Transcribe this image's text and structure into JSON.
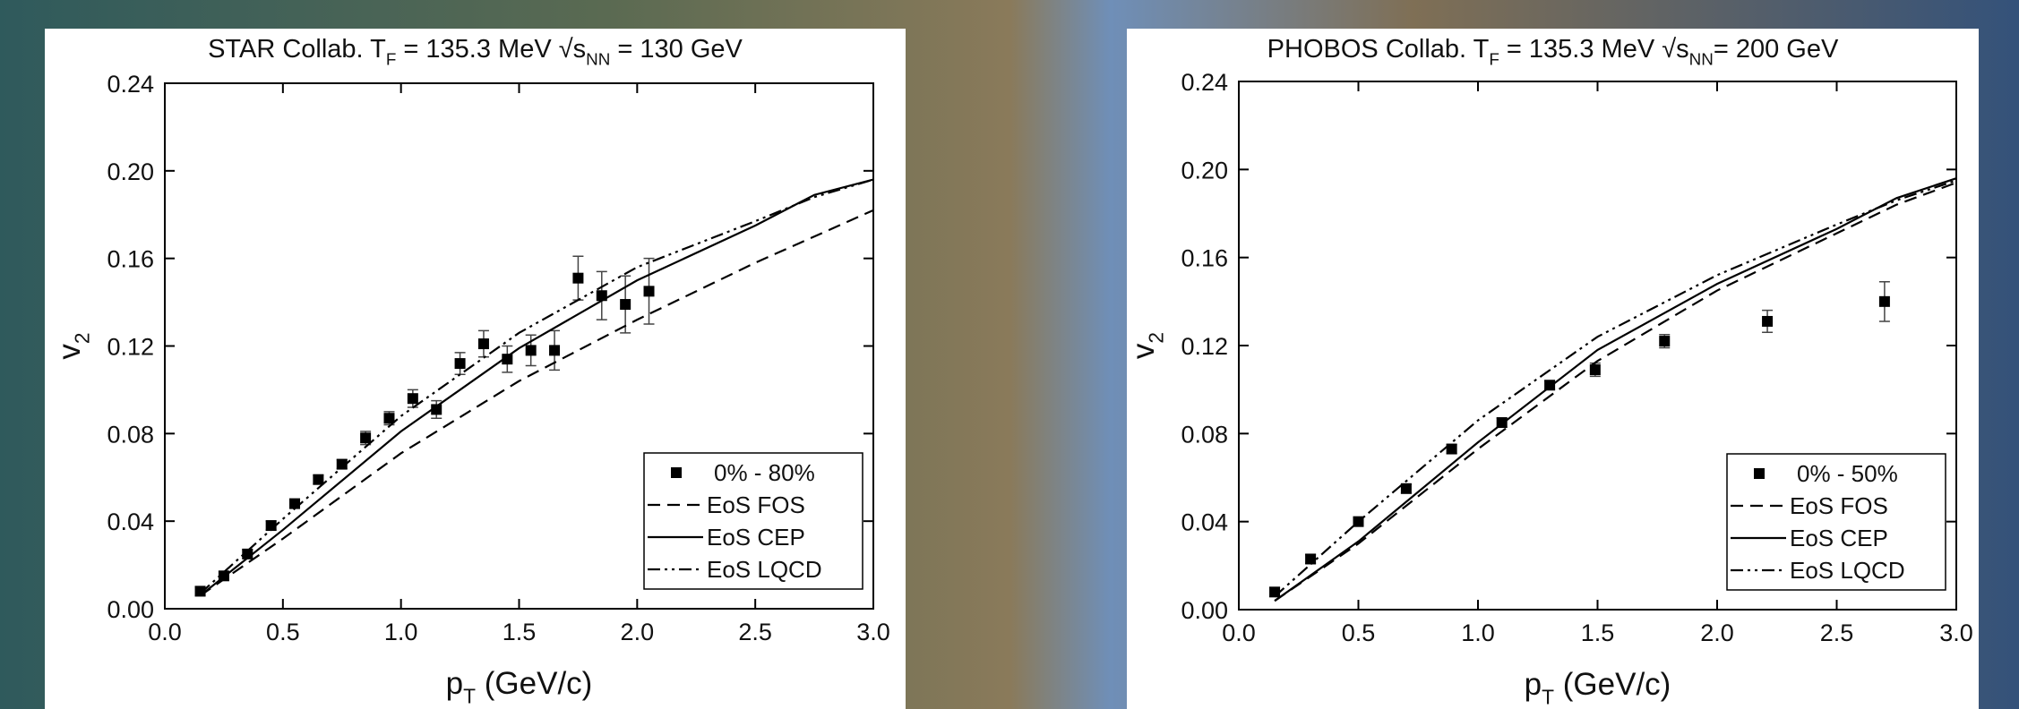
{
  "chart_data": [
    {
      "type": "line",
      "title": [
        {
          "text": "STAR Collab.   T"
        },
        {
          "text": "F",
          "sub": true
        },
        {
          "text": " = 135.3 MeV   √s"
        },
        {
          "text": "NN",
          "sub": true
        },
        {
          "text": " = 130 GeV"
        }
      ],
      "x_label": [
        {
          "text": "p"
        },
        {
          "text": "T",
          "sub": true
        },
        {
          "text": " (GeV/c)"
        }
      ],
      "y_label": [
        {
          "text": "v"
        },
        {
          "text": "2",
          "sub": true
        }
      ],
      "xlim": [
        0,
        3
      ],
      "ylim": [
        0,
        0.24
      ],
      "xticks": [
        {
          "value": 0,
          "label": "0.0"
        },
        0.5,
        {
          "value": 1,
          "label": "1.0"
        },
        1.5,
        {
          "value": 2,
          "label": "2.0"
        },
        2.5,
        {
          "value": 3,
          "label": "3.0"
        }
      ],
      "yticks": [
        {
          "value": 0,
          "label": "0.00"
        },
        {
          "value": 0.04,
          "label": "0.04"
        },
        {
          "value": 0.08,
          "label": "0.08"
        },
        {
          "value": 0.12,
          "label": "0.12"
        },
        {
          "value": 0.16,
          "label": "0.16"
        },
        {
          "value": 0.2,
          "label": "0.20"
        },
        {
          "value": 0.24,
          "label": "0.24"
        }
      ],
      "legend": "lower right",
      "series": [
        {
          "name": "0% - 80%",
          "style": "points",
          "color": "#000000",
          "x": [
            0.15,
            0.25,
            0.35,
            0.45,
            0.55,
            0.65,
            0.75,
            0.85,
            0.95,
            1.05,
            1.15,
            1.25,
            1.35,
            1.45,
            1.55,
            1.65,
            1.75,
            1.85,
            1.95,
            2.05
          ],
          "values": [
            0.008,
            0.015,
            0.025,
            0.038,
            0.048,
            0.059,
            0.066,
            0.078,
            0.087,
            0.096,
            0.091,
            0.112,
            0.121,
            0.114,
            0.118,
            0.118,
            0.151,
            0.143,
            0.139,
            0.145
          ],
          "errors": [
            0.002,
            0.002,
            0.002,
            0.002,
            0.002,
            0.002,
            0.002,
            0.003,
            0.003,
            0.004,
            0.004,
            0.005,
            0.006,
            0.006,
            0.007,
            0.009,
            0.01,
            0.011,
            0.013,
            0.015
          ]
        },
        {
          "name": "EoS FOS",
          "style": "dashed",
          "color": "#000000",
          "x": [
            0.15,
            0.5,
            1.0,
            1.5,
            2.0,
            2.5,
            3.0
          ],
          "values": [
            0.006,
            0.032,
            0.071,
            0.104,
            0.132,
            0.158,
            0.182
          ]
        },
        {
          "name": "EoS CEP",
          "style": "solid",
          "color": "#000000",
          "x": [
            0.15,
            0.5,
            1.0,
            1.5,
            2.0,
            2.5,
            2.75,
            3.0
          ],
          "values": [
            0.006,
            0.036,
            0.081,
            0.119,
            0.15,
            0.175,
            0.189,
            0.196
          ]
        },
        {
          "name": "EoS LQCD",
          "style": "dash-dot-dot",
          "color": "#000000",
          "x": [
            0.15,
            0.5,
            1.0,
            1.5,
            2.0,
            2.5,
            2.75,
            3.0
          ],
          "values": [
            0.007,
            0.041,
            0.088,
            0.126,
            0.156,
            0.177,
            0.188,
            0.196
          ]
        }
      ]
    },
    {
      "type": "line",
      "title": [
        {
          "text": "PHOBOS Collab.    T"
        },
        {
          "text": "F",
          "sub": true
        },
        {
          "text": " = 135.3 MeV   √s"
        },
        {
          "text": "NN",
          "sub": true
        },
        {
          "text": "= 200 GeV"
        }
      ],
      "x_label": [
        {
          "text": "p"
        },
        {
          "text": "T",
          "sub": true
        },
        {
          "text": " (GeV/c)"
        }
      ],
      "y_label": [
        {
          "text": "v"
        },
        {
          "text": "2",
          "sub": true
        }
      ],
      "xlim": [
        0,
        3
      ],
      "ylim": [
        0,
        0.24
      ],
      "xticks": [
        {
          "value": 0,
          "label": "0.0"
        },
        0.5,
        {
          "value": 1,
          "label": "1.0"
        },
        1.5,
        {
          "value": 2,
          "label": "2.0"
        },
        2.5,
        {
          "value": 3,
          "label": "3.0"
        }
      ],
      "yticks": [
        {
          "value": 0,
          "label": "0.00"
        },
        {
          "value": 0.04,
          "label": "0.04"
        },
        {
          "value": 0.08,
          "label": "0.08"
        },
        {
          "value": 0.12,
          "label": "0.12"
        },
        {
          "value": 0.16,
          "label": "0.16"
        },
        {
          "value": 0.2,
          "label": "0.20"
        },
        {
          "value": 0.24,
          "label": "0.24"
        }
      ],
      "legend": "lower right",
      "series": [
        {
          "name": "0% - 50%",
          "style": "points",
          "color": "#000000",
          "x": [
            0.15,
            0.3,
            0.5,
            0.7,
            0.89,
            1.1,
            1.3,
            1.49,
            1.78,
            2.21,
            2.7
          ],
          "values": [
            0.008,
            0.023,
            0.04,
            0.055,
            0.073,
            0.085,
            0.102,
            0.109,
            0.122,
            0.131,
            0.14
          ],
          "errors": [
            0.002,
            0.002,
            0.002,
            0.002,
            0.002,
            0.002,
            0.002,
            0.003,
            0.003,
            0.005,
            0.009
          ]
        },
        {
          "name": "EoS FOS",
          "style": "dashed",
          "color": "#000000",
          "x": [
            0.15,
            0.5,
            1.0,
            1.5,
            2.0,
            2.5,
            2.75,
            3.0
          ],
          "values": [
            0.004,
            0.03,
            0.073,
            0.113,
            0.145,
            0.171,
            0.184,
            0.194
          ]
        },
        {
          "name": "EoS CEP",
          "style": "solid",
          "color": "#000000",
          "x": [
            0.15,
            0.5,
            1.0,
            1.5,
            2.0,
            2.5,
            2.75,
            3.0
          ],
          "values": [
            0.004,
            0.031,
            0.076,
            0.118,
            0.148,
            0.173,
            0.187,
            0.196
          ]
        },
        {
          "name": "EoS LQCD",
          "style": "dash-dot-dot",
          "color": "#000000",
          "x": [
            0.15,
            0.5,
            1.0,
            1.5,
            2.0,
            2.5,
            2.75,
            3.0
          ],
          "values": [
            0.006,
            0.04,
            0.086,
            0.124,
            0.152,
            0.175,
            0.186,
            0.195
          ]
        }
      ]
    }
  ]
}
